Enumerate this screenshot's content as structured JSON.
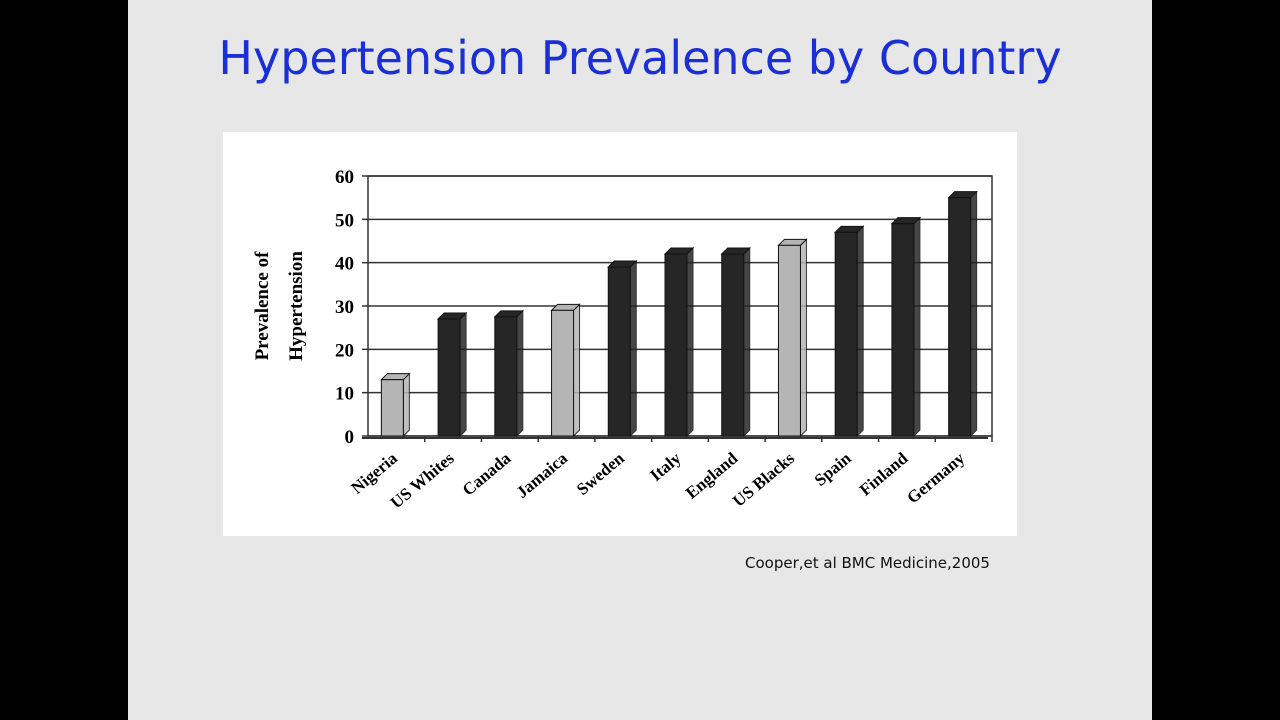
{
  "chart_data": {
    "type": "bar",
    "title": "Hypertension Prevalence by Country",
    "ylabel": [
      "Prevalence of",
      "Hypertension"
    ],
    "source": "Cooper,et al BMC Medicine,2005",
    "categories": [
      "Nigeria",
      "US Whites",
      "Canada",
      "Jamaica",
      "Sweden",
      "Italy",
      "England",
      "US Blacks",
      "Spain",
      "Finland",
      "Germany"
    ],
    "values": [
      13,
      27,
      27.5,
      29,
      39,
      42,
      42,
      44,
      47,
      49,
      55
    ],
    "colors": [
      "#b5b5b5",
      "#262626",
      "#262626",
      "#b5b5b5",
      "#262626",
      "#262626",
      "#262626",
      "#b5b5b5",
      "#262626",
      "#262626",
      "#262626"
    ],
    "ylim": [
      0,
      60
    ],
    "yticks": [
      0,
      10,
      20,
      30,
      40,
      50,
      60
    ],
    "grid": true
  }
}
